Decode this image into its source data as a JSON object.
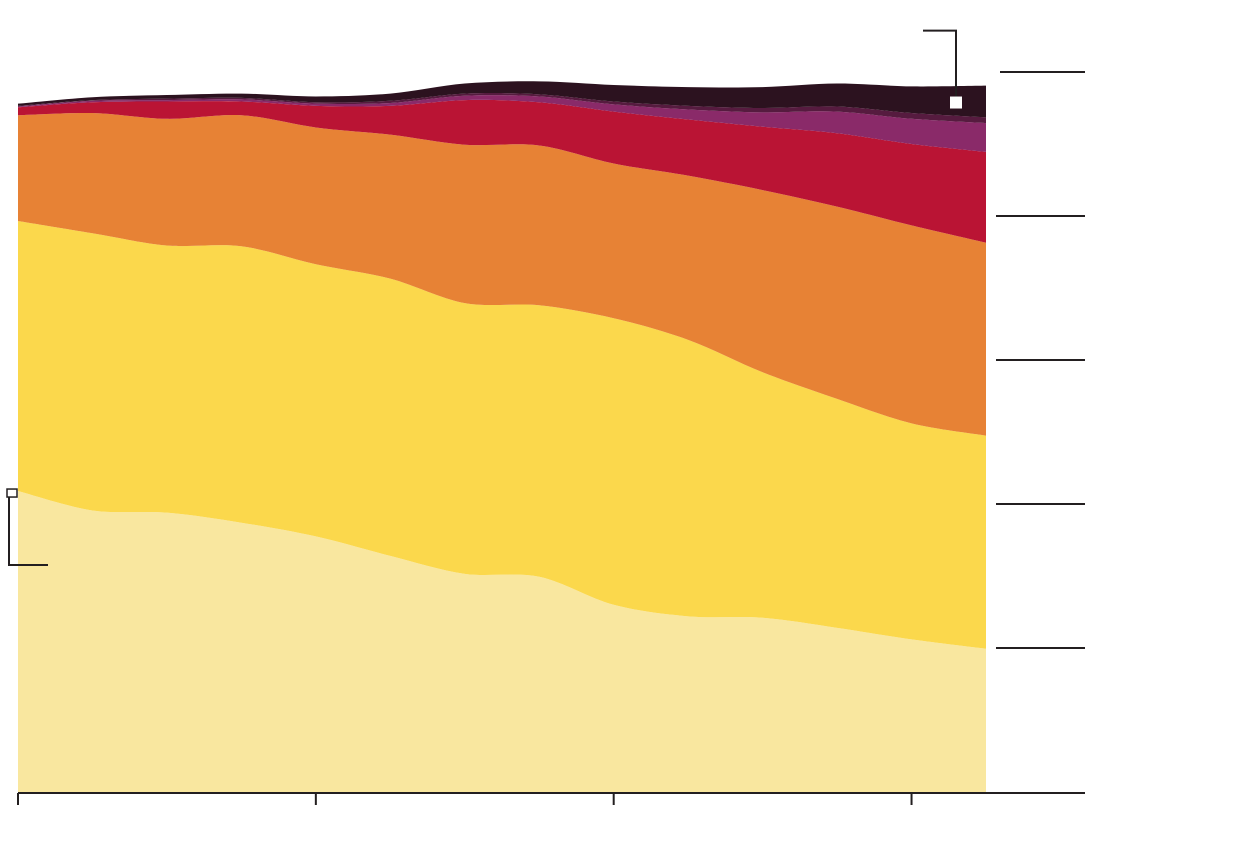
{
  "chart_data": {
    "type": "area",
    "stacked": true,
    "title": "",
    "xlabel": "",
    "ylabel": "",
    "grid": false,
    "legend": "none",
    "ylim": [
      0,
      100
    ],
    "x": [
      0,
      1,
      2,
      3,
      4,
      5,
      6,
      7,
      8,
      9,
      10,
      11,
      12,
      13
    ],
    "series": [
      {
        "color": "#f9e79f",
        "values": [
          41.8,
          39.1,
          38.8,
          37.4,
          35.5,
          32.8,
          30.3,
          29.9,
          26.0,
          24.4,
          24.2,
          22.8,
          21.2,
          19.9
        ]
      },
      {
        "color": "#fbd84c",
        "values": [
          37.5,
          38.5,
          37.1,
          38.4,
          37.8,
          38.5,
          37.6,
          37.7,
          39.8,
          38.4,
          34.1,
          31.8,
          30.0,
          29.6
        ]
      },
      {
        "color": "#e78235",
        "values": [
          14.7,
          16.7,
          17.6,
          18.2,
          19.0,
          20.0,
          22.0,
          22.2,
          21.5,
          22.8,
          25.3,
          26.7,
          27.5,
          26.8
        ]
      },
      {
        "color": "#ba1434",
        "values": [
          1.1,
          1.5,
          2.4,
          1.9,
          3.0,
          4.0,
          6.2,
          6.0,
          7.2,
          7.8,
          8.8,
          10.2,
          11.3,
          12.6
        ]
      },
      {
        "color": "#8a2a69",
        "values": [
          0.1,
          0.2,
          0.2,
          0.3,
          0.3,
          0.4,
          0.6,
          0.8,
          1.0,
          1.4,
          2.0,
          3.0,
          3.5,
          4.0
        ]
      },
      {
        "color": "#561b3f",
        "values": [
          0.1,
          0.1,
          0.2,
          0.2,
          0.2,
          0.3,
          0.3,
          0.3,
          0.4,
          0.5,
          0.6,
          0.7,
          0.8,
          0.8
        ]
      },
      {
        "color": "#2c121f",
        "values": [
          0.3,
          0.4,
          0.5,
          0.6,
          0.8,
          1.0,
          1.4,
          1.8,
          2.3,
          2.6,
          2.9,
          3.2,
          3.7,
          4.4
        ]
      }
    ],
    "x_ticks": [
      0,
      4,
      8,
      12
    ],
    "y_ticks": [
      0,
      20,
      40,
      60,
      80,
      100
    ],
    "annotations": [
      {
        "kind": "bracket",
        "series_index": 0,
        "x": 0
      },
      {
        "kind": "bracket",
        "series_index": 6,
        "x": 13
      }
    ]
  },
  "colors": {
    "axis": "#231f20",
    "background": "#ffffff"
  }
}
